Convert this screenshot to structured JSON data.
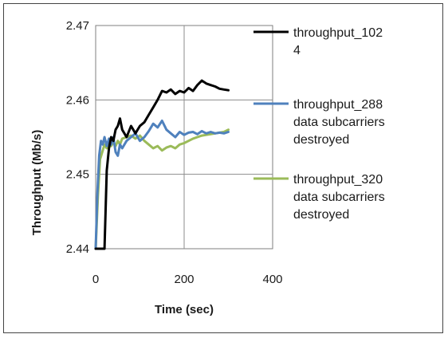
{
  "chart_data": {
    "type": "line",
    "title": "",
    "xlabel": "Time (sec)",
    "ylabel": "Throughput (Mb/s)",
    "xlim": [
      0,
      400
    ],
    "ylim": [
      2.44,
      2.47
    ],
    "x_ticks": [
      "0",
      "200",
      "400"
    ],
    "y_ticks": [
      "2.44",
      "2.45",
      "2.46",
      "2.47"
    ],
    "grid": true,
    "legend_position": "right",
    "series": [
      {
        "name": "throughput_1024",
        "legend_lines": [
          "throughput_102",
          "4"
        ],
        "color": "#000000",
        "x": [
          0,
          5,
          10,
          20,
          25,
          30,
          35,
          40,
          45,
          50,
          55,
          60,
          70,
          80,
          90,
          100,
          110,
          120,
          130,
          140,
          150,
          160,
          170,
          180,
          190,
          200,
          210,
          220,
          230,
          240,
          250,
          260,
          270,
          280,
          290,
          300
        ],
        "y": [
          2.4395,
          2.4395,
          2.4395,
          2.4395,
          2.4505,
          2.4535,
          2.455,
          2.4545,
          2.456,
          2.4565,
          2.4575,
          2.456,
          2.455,
          2.4565,
          2.4555,
          2.4565,
          2.457,
          2.458,
          2.459,
          2.46,
          2.4612,
          2.461,
          2.4614,
          2.4608,
          2.4612,
          2.461,
          2.4616,
          2.4612,
          2.462,
          2.4626,
          2.4622,
          2.462,
          2.4618,
          2.4615,
          2.4614,
          2.4613
        ]
      },
      {
        "name": "throughput_288 data subcarriers destroyed",
        "legend_lines": [
          "throughput_288",
          "data subcarriers",
          "destroyed"
        ],
        "color": "#4f81bd",
        "x": [
          0,
          4,
          8,
          12,
          16,
          20,
          25,
          30,
          35,
          40,
          45,
          50,
          55,
          60,
          70,
          80,
          90,
          100,
          110,
          120,
          130,
          140,
          150,
          160,
          170,
          180,
          190,
          200,
          210,
          220,
          230,
          240,
          250,
          260,
          270,
          280,
          290,
          300
        ],
        "y": [
          2.4395,
          2.4475,
          2.4525,
          2.4545,
          2.454,
          2.455,
          2.4538,
          2.4548,
          2.454,
          2.455,
          2.453,
          2.4525,
          2.454,
          2.4535,
          2.4545,
          2.455,
          2.4555,
          2.4545,
          2.455,
          2.4558,
          2.4568,
          2.4563,
          2.4572,
          2.456,
          2.4555,
          2.455,
          2.4557,
          2.4553,
          2.4556,
          2.4557,
          2.4554,
          2.4558,
          2.4555,
          2.4557,
          2.4555,
          2.4556,
          2.4555,
          2.4557
        ]
      },
      {
        "name": "throughput_320 data subcarriers destroyed",
        "legend_lines": [
          "throughput_320",
          "data subcarriers",
          "destroyed"
        ],
        "color": "#9bbb59",
        "x": [
          0,
          5,
          10,
          15,
          20,
          25,
          30,
          35,
          40,
          45,
          50,
          55,
          60,
          70,
          80,
          90,
          100,
          110,
          120,
          130,
          140,
          150,
          160,
          170,
          180,
          190,
          200,
          210,
          220,
          230,
          240,
          250,
          260,
          270,
          280,
          290,
          300
        ],
        "y": [
          2.4395,
          2.447,
          2.452,
          2.453,
          2.454,
          2.4535,
          2.4545,
          2.4538,
          2.4543,
          2.4538,
          2.4545,
          2.454,
          2.4548,
          2.455,
          2.4552,
          2.4548,
          2.4552,
          2.4545,
          2.454,
          2.4535,
          2.4538,
          2.4532,
          2.4536,
          2.4538,
          2.4535,
          2.454,
          2.4542,
          2.4545,
          2.4548,
          2.455,
          2.4552,
          2.4553,
          2.4554,
          2.4555,
          2.4556,
          2.4557,
          2.456
        ]
      }
    ]
  }
}
